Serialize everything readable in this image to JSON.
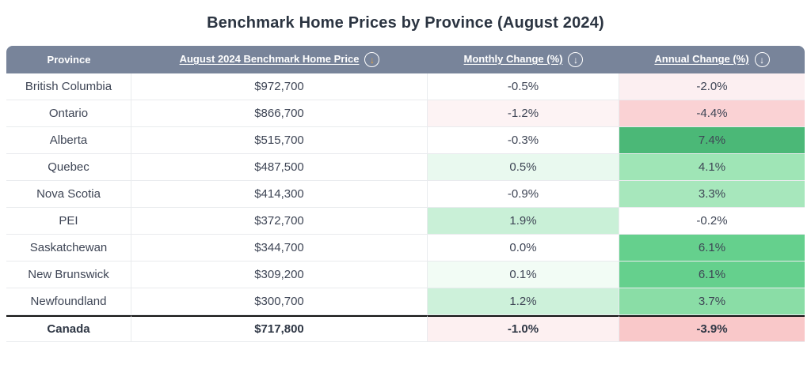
{
  "title": "Benchmark Home Prices by Province (August 2024)",
  "colors": {
    "header_bg": "#78849a",
    "header_text": "#ffffff",
    "price_sort_arrow": "#e8a23c",
    "change_sort_arrow": "#ffffff",
    "body_text": "#3e4555",
    "total_divider": "#121212",
    "positive_strong_green": "#4bb877",
    "negative_strong_pink": "#fad2d4"
  },
  "table": {
    "headers": {
      "province": "Province",
      "price": "August 2024 Benchmark Home Price",
      "monthly": "Monthly Change (%)",
      "annual": "Annual Change (%)",
      "sort_arrow_glyph": "↓"
    },
    "rows": [
      {
        "province": "British Columbia",
        "price": "$972,700",
        "monthly": "-0.5%",
        "annual": "-2.0%",
        "monthly_bg": "#ffffff",
        "annual_bg": "#fceff1"
      },
      {
        "province": "Ontario",
        "price": "$866,700",
        "monthly": "-1.2%",
        "annual": "-4.4%",
        "monthly_bg": "#fdf3f4",
        "annual_bg": "#fad2d4"
      },
      {
        "province": "Alberta",
        "price": "$515,700",
        "monthly": "-0.3%",
        "annual": "7.4%",
        "monthly_bg": "#ffffff",
        "annual_bg": "#4bb877"
      },
      {
        "province": "Quebec",
        "price": "$487,500",
        "monthly": "0.5%",
        "annual": "4.1%",
        "monthly_bg": "#e9f9ef",
        "annual_bg": "#9fe5b6"
      },
      {
        "province": "Nova Scotia",
        "price": "$414,300",
        "monthly": "-0.9%",
        "annual": "3.3%",
        "monthly_bg": "#ffffff",
        "annual_bg": "#a7e7bc"
      },
      {
        "province": "PEI",
        "price": "$372,700",
        "monthly": "1.9%",
        "annual": "-0.2%",
        "monthly_bg": "#c9f0d7",
        "annual_bg": "#ffffff"
      },
      {
        "province": "Saskatchewan",
        "price": "$344,700",
        "monthly": "0.0%",
        "annual": "6.1%",
        "monthly_bg": "#ffffff",
        "annual_bg": "#65d08d"
      },
      {
        "province": "New Brunswick",
        "price": "$309,200",
        "monthly": "0.1%",
        "annual": "6.1%",
        "monthly_bg": "#f2fcf5",
        "annual_bg": "#65d08d"
      },
      {
        "province": "Newfoundland",
        "price": "$300,700",
        "monthly": "1.2%",
        "annual": "3.7%",
        "monthly_bg": "#cdf1da",
        "annual_bg": "#8adda6"
      },
      {
        "province": "Canada",
        "price": "$717,800",
        "monthly": "-1.0%",
        "annual": "-3.9%",
        "monthly_bg": "#fdf0f1",
        "annual_bg": "#f9c8c9"
      }
    ]
  },
  "chart_data": {
    "type": "table",
    "title": "Benchmark Home Prices by Province (August 2024)",
    "columns": [
      "Province",
      "August 2024 Benchmark Home Price",
      "Monthly Change (%)",
      "Annual Change (%)"
    ],
    "rows": [
      [
        "British Columbia",
        972700,
        -0.5,
        -2.0
      ],
      [
        "Ontario",
        866700,
        -1.2,
        -4.4
      ],
      [
        "Alberta",
        515700,
        -0.3,
        7.4
      ],
      [
        "Quebec",
        487500,
        0.5,
        4.1
      ],
      [
        "Nova Scotia",
        414300,
        -0.9,
        3.3
      ],
      [
        "PEI",
        372700,
        1.9,
        -0.2
      ],
      [
        "Saskatchewan",
        344700,
        0.0,
        6.1
      ],
      [
        "New Brunswick",
        309200,
        0.1,
        6.1
      ],
      [
        "Newfoundland",
        300700,
        1.2,
        3.7
      ],
      [
        "Canada",
        717800,
        -1.0,
        -3.9
      ]
    ],
    "notes": "Heatmap shading: green cells = positive change, pink/red cells = negative change; intensity scales with magnitude. Canada summary row separated by thick black rule, bold."
  }
}
